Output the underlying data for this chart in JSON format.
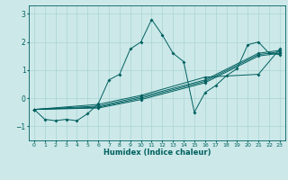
{
  "xlabel": "Humidex (Indice chaleur)",
  "xlim": [
    -0.5,
    23.5
  ],
  "ylim": [
    -1.5,
    3.3
  ],
  "bg_color": "#cce8e8",
  "line_color": "#006060",
  "grid_color": "#aad4d4",
  "xticks": [
    0,
    1,
    2,
    3,
    4,
    5,
    6,
    7,
    8,
    9,
    10,
    11,
    12,
    13,
    14,
    15,
    16,
    17,
    18,
    19,
    20,
    21,
    22,
    23
  ],
  "yticks": [
    -1,
    0,
    1,
    2,
    3
  ],
  "series": [
    {
      "x": [
        0,
        1,
        2,
        3,
        4,
        5,
        6,
        7,
        8,
        9,
        10,
        11,
        12,
        13,
        14,
        15,
        16,
        17,
        18,
        19,
        20,
        21,
        22,
        23
      ],
      "y": [
        -0.4,
        -0.75,
        -0.8,
        -0.75,
        -0.8,
        -0.55,
        -0.2,
        0.65,
        0.85,
        1.75,
        2.0,
        2.8,
        2.25,
        1.6,
        1.3,
        -0.5,
        0.2,
        0.45,
        0.8,
        1.05,
        1.9,
        2.0,
        1.6,
        1.55
      ]
    },
    {
      "x": [
        0,
        6,
        10,
        16,
        21,
        23
      ],
      "y": [
        -0.4,
        -0.35,
        -0.05,
        0.55,
        1.5,
        1.6
      ]
    },
    {
      "x": [
        0,
        6,
        10,
        16,
        21,
        23
      ],
      "y": [
        -0.4,
        -0.32,
        0.0,
        0.6,
        1.55,
        1.65
      ]
    },
    {
      "x": [
        0,
        6,
        10,
        16,
        21,
        23
      ],
      "y": [
        -0.4,
        -0.28,
        0.05,
        0.65,
        1.6,
        1.7
      ]
    },
    {
      "x": [
        0,
        6,
        10,
        16,
        21,
        23
      ],
      "y": [
        -0.4,
        -0.22,
        0.1,
        0.75,
        0.85,
        1.75
      ]
    }
  ]
}
